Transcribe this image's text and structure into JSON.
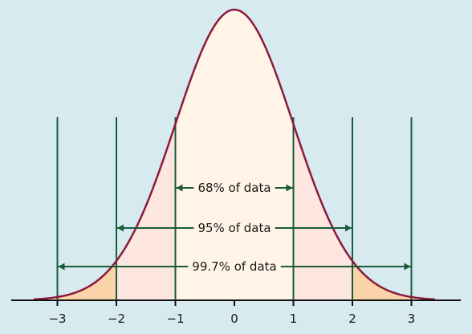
{
  "colors": {
    "background": "#d6eaf0",
    "curve": "#8b1a3c",
    "guide_lines": "#1a5c3a",
    "fill_center": "#fff4e6",
    "fill_mid": "#fde6df",
    "fill_tail": "#fbd3a8",
    "axis": "#111111"
  },
  "axis": {
    "ticks": [
      {
        "value": -3,
        "label": "−3"
      },
      {
        "value": -2,
        "label": "−2"
      },
      {
        "value": -1,
        "label": "−1"
      },
      {
        "value": 0,
        "label": "0"
      },
      {
        "value": 1,
        "label": "1"
      },
      {
        "value": 2,
        "label": "2"
      },
      {
        "value": 3,
        "label": "3"
      }
    ]
  },
  "ranges": [
    {
      "from": -1,
      "to": 1,
      "label": "68% of data"
    },
    {
      "from": -2,
      "to": 2,
      "label": "95% of data"
    },
    {
      "from": -3,
      "to": 3,
      "label": "99.7% of data"
    }
  ],
  "curve": {
    "type": "normal",
    "mean": 0,
    "sd": 1
  }
}
